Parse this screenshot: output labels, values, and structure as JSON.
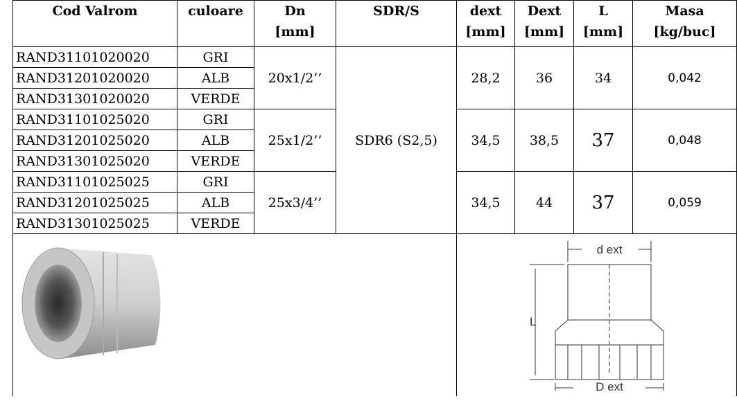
{
  "table": {
    "header": [
      [
        "Cod Valrom"
      ],
      [
        "culoare"
      ],
      [
        "Dn",
        "[mm]"
      ],
      [
        "SDR/S"
      ],
      [
        "dext",
        "[mm]"
      ],
      [
        "Dext",
        "[mm]"
      ],
      [
        "L",
        "[mm]"
      ],
      [
        "Masa",
        "[kg/buc]"
      ]
    ],
    "sdr": "SDR6 (S2,5)",
    "groups": [
      {
        "dn": "20x1/2’’",
        "dext": "28,2",
        "Dext": "36",
        "L": "34",
        "masa": "0,042",
        "rows": [
          [
            "RAND31101020020",
            "GRI"
          ],
          [
            "RAND31201020020",
            "ALB"
          ],
          [
            "RAND31301020020",
            "VERDE"
          ]
        ]
      },
      {
        "dn": "25x1/2’’",
        "dext": "34,5",
        "Dext": "38,5",
        "L": "37",
        "masa": "0,048",
        "rows": [
          [
            "RAND31101025020",
            "GRI"
          ],
          [
            "RAND31201025020",
            "ALB"
          ],
          [
            "RAND31301025020",
            "VERDE"
          ]
        ]
      },
      {
        "dn": "25x3/4’’",
        "dext": "34,5",
        "Dext": "44",
        "L": "37",
        "masa": "0,059",
        "rows": [
          [
            "RAND31101025025",
            "GRI"
          ],
          [
            "RAND31201025025",
            "ALB"
          ],
          [
            "RAND31301025025",
            "VERDE"
          ]
        ]
      }
    ]
  },
  "diagram": {
    "d_ext": "d ext",
    "L": "L",
    "D_ext": "D ext"
  }
}
